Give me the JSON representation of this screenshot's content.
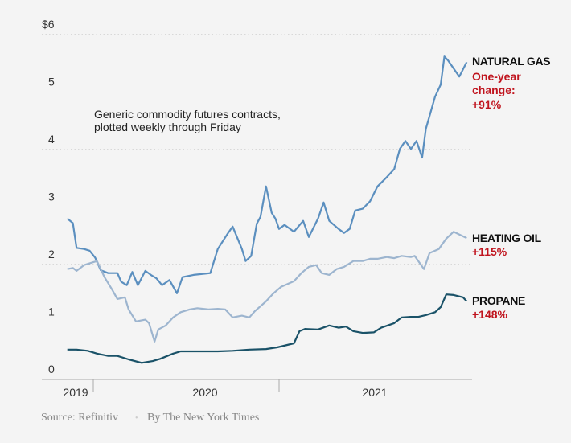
{
  "chart_data": {
    "type": "line",
    "annotation": [
      "Generic commodity futures contracts,",
      "plotted weekly through Friday"
    ],
    "y_ticks": [
      "$6",
      "5",
      "4",
      "3",
      "2",
      "1",
      "0"
    ],
    "y_tick_values": [
      6,
      5,
      4,
      3,
      2,
      1,
      0
    ],
    "ylim": [
      0,
      6
    ],
    "x_ticks": [
      "2019",
      "2020",
      "2021"
    ],
    "grid": "horizontal dotted",
    "legend": "direct labels at right end of lines",
    "series": [
      {
        "name": "NATURAL GAS",
        "change_label": [
          "One-year",
          "change:",
          "+91%"
        ],
        "color": "#5b8fbf",
        "points": [
          [
            2019.86,
            2.8
          ],
          [
            2019.89,
            2.72
          ],
          [
            2019.91,
            2.29
          ],
          [
            2019.95,
            2.27
          ],
          [
            2019.98,
            2.24
          ],
          [
            2020.01,
            2.12
          ],
          [
            2020.04,
            1.9
          ],
          [
            2020.08,
            1.85
          ],
          [
            2020.13,
            1.85
          ],
          [
            2020.15,
            1.7
          ],
          [
            2020.18,
            1.64
          ],
          [
            2020.21,
            1.87
          ],
          [
            2020.24,
            1.64
          ],
          [
            2020.28,
            1.89
          ],
          [
            2020.31,
            1.82
          ],
          [
            2020.34,
            1.76
          ],
          [
            2020.37,
            1.64
          ],
          [
            2020.41,
            1.73
          ],
          [
            2020.45,
            1.5
          ],
          [
            2020.48,
            1.78
          ],
          [
            2020.54,
            1.82
          ],
          [
            2020.63,
            1.85
          ],
          [
            2020.67,
            2.27
          ],
          [
            2020.72,
            2.52
          ],
          [
            2020.75,
            2.66
          ],
          [
            2020.8,
            2.27
          ],
          [
            2020.82,
            2.06
          ],
          [
            2020.85,
            2.15
          ],
          [
            2020.88,
            2.71
          ],
          [
            2020.9,
            2.83
          ],
          [
            2020.93,
            3.36
          ],
          [
            2020.96,
            2.9
          ],
          [
            2020.98,
            2.8
          ],
          [
            2021.0,
            2.62
          ],
          [
            2021.03,
            2.69
          ],
          [
            2021.08,
            2.57
          ],
          [
            2021.13,
            2.76
          ],
          [
            2021.16,
            2.48
          ],
          [
            2021.21,
            2.8
          ],
          [
            2021.24,
            3.08
          ],
          [
            2021.27,
            2.76
          ],
          [
            2021.32,
            2.62
          ],
          [
            2021.35,
            2.55
          ],
          [
            2021.38,
            2.62
          ],
          [
            2021.41,
            2.94
          ],
          [
            2021.45,
            2.97
          ],
          [
            2021.49,
            3.1
          ],
          [
            2021.53,
            3.36
          ],
          [
            2021.58,
            3.52
          ],
          [
            2021.62,
            3.66
          ],
          [
            2021.65,
            4.01
          ],
          [
            2021.68,
            4.15
          ],
          [
            2021.71,
            4.01
          ],
          [
            2021.74,
            4.15
          ],
          [
            2021.77,
            3.86
          ],
          [
            2021.79,
            4.36
          ],
          [
            2021.84,
            4.92
          ],
          [
            2021.87,
            5.13
          ],
          [
            2021.89,
            5.62
          ],
          [
            2021.91,
            5.55
          ],
          [
            2021.97,
            5.27
          ],
          [
            2022.01,
            5.52
          ]
        ]
      },
      {
        "name": "HEATING OIL",
        "change_label": [
          "+115%"
        ],
        "color": "#9db5cf",
        "points": [
          [
            2019.86,
            1.92
          ],
          [
            2019.89,
            1.94
          ],
          [
            2019.91,
            1.89
          ],
          [
            2019.95,
            1.99
          ],
          [
            2020.0,
            2.04
          ],
          [
            2020.02,
            2.06
          ],
          [
            2020.06,
            1.78
          ],
          [
            2020.1,
            1.57
          ],
          [
            2020.13,
            1.4
          ],
          [
            2020.17,
            1.43
          ],
          [
            2020.19,
            1.22
          ],
          [
            2020.23,
            1.01
          ],
          [
            2020.28,
            1.04
          ],
          [
            2020.3,
            0.98
          ],
          [
            2020.33,
            0.66
          ],
          [
            2020.35,
            0.87
          ],
          [
            2020.39,
            0.94
          ],
          [
            2020.43,
            1.08
          ],
          [
            2020.47,
            1.17
          ],
          [
            2020.52,
            1.22
          ],
          [
            2020.56,
            1.24
          ],
          [
            2020.62,
            1.22
          ],
          [
            2020.67,
            1.23
          ],
          [
            2020.71,
            1.22
          ],
          [
            2020.75,
            1.08
          ],
          [
            2020.8,
            1.11
          ],
          [
            2020.84,
            1.08
          ],
          [
            2020.87,
            1.19
          ],
          [
            2020.93,
            1.36
          ],
          [
            2020.97,
            1.5
          ],
          [
            2021.01,
            1.61
          ],
          [
            2021.08,
            1.71
          ],
          [
            2021.12,
            1.85
          ],
          [
            2021.16,
            1.96
          ],
          [
            2021.2,
            1.99
          ],
          [
            2021.23,
            1.85
          ],
          [
            2021.27,
            1.82
          ],
          [
            2021.31,
            1.92
          ],
          [
            2021.35,
            1.96
          ],
          [
            2021.4,
            2.06
          ],
          [
            2021.45,
            2.06
          ],
          [
            2021.49,
            2.1
          ],
          [
            2021.53,
            2.1
          ],
          [
            2021.58,
            2.13
          ],
          [
            2021.62,
            2.11
          ],
          [
            2021.66,
            2.15
          ],
          [
            2021.71,
            2.13
          ],
          [
            2021.73,
            2.15
          ],
          [
            2021.78,
            1.92
          ],
          [
            2021.81,
            2.2
          ],
          [
            2021.86,
            2.27
          ],
          [
            2021.9,
            2.45
          ],
          [
            2021.94,
            2.57
          ],
          [
            2022.01,
            2.46
          ]
        ]
      },
      {
        "name": "PROPANE",
        "change_label": [
          "+148%"
        ],
        "color": "#1a5268",
        "points": [
          [
            2019.86,
            0.52
          ],
          [
            2019.91,
            0.52
          ],
          [
            2019.97,
            0.5
          ],
          [
            2020.02,
            0.45
          ],
          [
            2020.08,
            0.41
          ],
          [
            2020.13,
            0.41
          ],
          [
            2020.19,
            0.35
          ],
          [
            2020.26,
            0.29
          ],
          [
            2020.32,
            0.32
          ],
          [
            2020.36,
            0.36
          ],
          [
            2020.43,
            0.45
          ],
          [
            2020.47,
            0.49
          ],
          [
            2020.54,
            0.49
          ],
          [
            2020.67,
            0.49
          ],
          [
            2020.75,
            0.5
          ],
          [
            2020.84,
            0.52
          ],
          [
            2020.93,
            0.53
          ],
          [
            2020.99,
            0.56
          ],
          [
            2021.08,
            0.63
          ],
          [
            2021.11,
            0.84
          ],
          [
            2021.14,
            0.88
          ],
          [
            2021.21,
            0.87
          ],
          [
            2021.27,
            0.94
          ],
          [
            2021.32,
            0.9
          ],
          [
            2021.36,
            0.92
          ],
          [
            2021.4,
            0.84
          ],
          [
            2021.45,
            0.81
          ],
          [
            2021.51,
            0.82
          ],
          [
            2021.55,
            0.9
          ],
          [
            2021.62,
            0.98
          ],
          [
            2021.66,
            1.08
          ],
          [
            2021.71,
            1.09
          ],
          [
            2021.75,
            1.09
          ],
          [
            2021.79,
            1.12
          ],
          [
            2021.84,
            1.17
          ],
          [
            2021.87,
            1.26
          ],
          [
            2021.9,
            1.48
          ],
          [
            2021.94,
            1.47
          ],
          [
            2021.99,
            1.43
          ],
          [
            2022.01,
            1.36
          ]
        ]
      }
    ]
  },
  "footer": {
    "source": "Source: Refinitiv",
    "separator": "•",
    "credit": "By The New York Times"
  }
}
